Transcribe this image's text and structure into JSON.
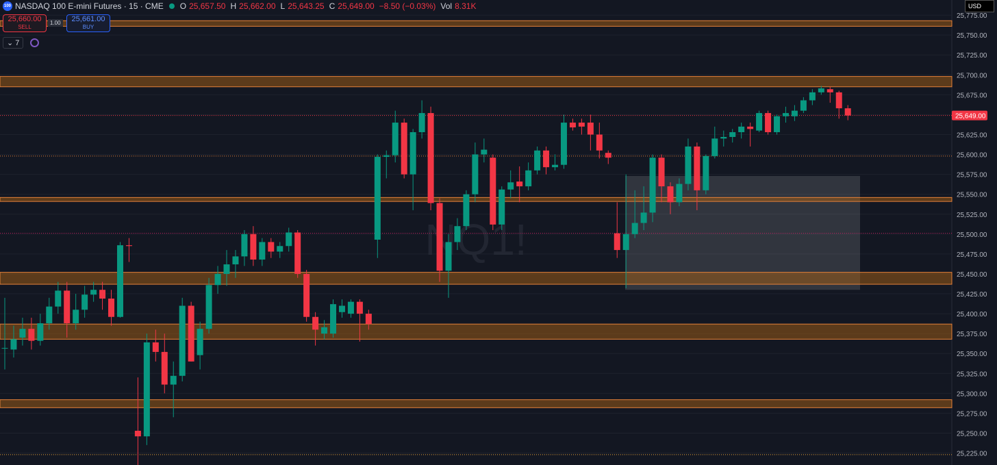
{
  "header": {
    "logo": "100",
    "symbol": "NASDAQ 100 E-mini Futures · 15 · CME",
    "ohlc": [
      {
        "key": "O",
        "value": "25,657.50"
      },
      {
        "key": "H",
        "value": "25,662.00"
      },
      {
        "key": "L",
        "value": "25,643.25"
      },
      {
        "key": "C",
        "value": "25,649.00"
      }
    ],
    "change": "−8.50 (−0.03%)",
    "vol_label": "Vol",
    "vol": "8.31K",
    "currency": "USD"
  },
  "trade": {
    "sell_price": "25,660.00",
    "sell": "SELL",
    "qty": "1.00",
    "buy_price": "25,661.00",
    "buy": "BUY",
    "indicators": "7"
  },
  "chart_data": {
    "type": "candlestick",
    "watermark": "NQ1!",
    "up_color": "#089981",
    "down_color": "#f23645",
    "ylim": [
      25210,
      25794
    ],
    "yticks": [
      {
        "value": 25225,
        "label": "25,225.00"
      },
      {
        "value": 25250,
        "label": "25,250.00"
      },
      {
        "value": 25275,
        "label": "25,275.00"
      },
      {
        "value": 25300,
        "label": "25,300.00"
      },
      {
        "value": 25325,
        "label": "25,325.00"
      },
      {
        "value": 25350,
        "label": "25,350.00"
      },
      {
        "value": 25375,
        "label": "25,375.00"
      },
      {
        "value": 25400,
        "label": "25,400.00"
      },
      {
        "value": 25425,
        "label": "25,425.00"
      },
      {
        "value": 25450,
        "label": "25,450.00"
      },
      {
        "value": 25475,
        "label": "25,475.00"
      },
      {
        "value": 25500,
        "label": "25,500.00"
      },
      {
        "value": 25525,
        "label": "25,525.00"
      },
      {
        "value": 25550,
        "label": "25,550.00"
      },
      {
        "value": 25575,
        "label": "25,575.00"
      },
      {
        "value": 25600,
        "label": "25,600.00"
      },
      {
        "value": 25625,
        "label": "25,625.00"
      },
      {
        "value": 25650,
        "label": "25,650.00"
      },
      {
        "value": 25675,
        "label": "25,675.00"
      },
      {
        "value": 25700,
        "label": "25,700.00"
      },
      {
        "value": 25725,
        "label": "25,725.00"
      },
      {
        "value": 25750,
        "label": "25,750.00"
      },
      {
        "value": 25775,
        "label": "25,775.00"
      }
    ],
    "grid": true,
    "last_price": {
      "value": 25649,
      "label": "25,649.00"
    },
    "zones": [
      [
        25761,
        25768
      ],
      [
        25685,
        25698
      ],
      [
        25541,
        25546
      ],
      [
        25437,
        25452
      ],
      [
        25368,
        25387
      ],
      [
        25282,
        25292
      ]
    ],
    "levels": [
      {
        "value": 25649,
        "color": "#f23645"
      },
      {
        "value": 25598,
        "color": "#e5813a"
      },
      {
        "value": 25501,
        "color": "#c2185b"
      },
      {
        "value": 25223,
        "color": "#e5a13a"
      }
    ],
    "highlight": [
      25430,
      25573
    ],
    "open": [
      25357,
      25355,
      25370,
      25381,
      25366,
      25388,
      25409,
      25429,
      25388,
      25405,
      25424,
      25430,
      25419,
      25396,
      25486,
      25253,
      25246,
      25364,
      25352,
      25311,
      25322,
      25410,
      25348,
      25381,
      25436,
      25450,
      25462,
      25472,
      25500,
      25468,
      25490,
      25478,
      25485,
      25502,
      25450,
      25396,
      25375,
      25375,
      25402,
      25400,
      25415,
      25400,
      25493,
      25597,
      25599,
      25640,
      25575,
      25628,
      25652,
      25539,
      25454,
      25490,
      25510,
      25550,
      25600,
      25596,
      25512,
      25556,
      25566,
      25560,
      25580,
      25605,
      25584,
      25587,
      25640,
      25640,
      25640,
      25625,
      25602,
      25501,
      25480,
      25500,
      25514,
      25527,
      25596,
      25560,
      25540,
      25563,
      25610,
      25555,
      25598,
      25620,
      25622,
      25628,
      25635,
      25630,
      25652,
      25628,
      25648,
      25648,
      25655,
      25668,
      25678,
      25682,
      25678,
      25658
    ],
    "high": [
      25420,
      25385,
      25395,
      25395,
      25400,
      25420,
      25440,
      25440,
      25425,
      25435,
      25440,
      25440,
      25430,
      25490,
      25495,
      25320,
      25375,
      25380,
      25375,
      25340,
      25420,
      25415,
      25390,
      25445,
      25460,
      25480,
      25480,
      25505,
      25510,
      25495,
      25495,
      25490,
      25508,
      25505,
      25455,
      25402,
      25392,
      25418,
      25418,
      25418,
      25418,
      25405,
      25600,
      25605,
      25655,
      25645,
      25632,
      25668,
      25660,
      25545,
      25500,
      25520,
      25555,
      25615,
      25620,
      25600,
      25560,
      25580,
      25585,
      25590,
      25610,
      25610,
      25600,
      25650,
      25645,
      25645,
      25650,
      25640,
      25605,
      25540,
      25575,
      25555,
      25560,
      25600,
      25600,
      25565,
      25570,
      25620,
      25615,
      25600,
      25635,
      25630,
      25632,
      25640,
      25640,
      25655,
      25655,
      25650,
      25660,
      25662,
      25672,
      25682,
      25686,
      25685,
      25680,
      25662
    ],
    "low": [
      25330,
      25345,
      25360,
      25355,
      25360,
      25380,
      25400,
      25370,
      25380,
      25395,
      25415,
      25405,
      25385,
      25395,
      25465,
      25210,
      25235,
      25340,
      25300,
      25270,
      25315,
      25340,
      25330,
      25375,
      25425,
      25435,
      25445,
      25460,
      25460,
      25460,
      25470,
      25470,
      25478,
      25445,
      25390,
      25360,
      25368,
      25370,
      25395,
      25395,
      25365,
      25380,
      25470,
      25570,
      25590,
      25570,
      25530,
      25620,
      25530,
      25440,
      25420,
      25480,
      25505,
      25540,
      25590,
      25505,
      25505,
      25545,
      25540,
      25555,
      25575,
      25575,
      25580,
      25582,
      25630,
      25625,
      25605,
      25595,
      25588,
      25470,
      25432,
      25495,
      25505,
      25515,
      25540,
      25525,
      25535,
      25555,
      25530,
      25550,
      25595,
      25610,
      25615,
      25620,
      25610,
      25628,
      25625,
      25625,
      25640,
      25642,
      25652,
      25662,
      25675,
      25665,
      25645,
      25643
    ],
    "close": [
      25357,
      25368,
      25381,
      25366,
      25388,
      25409,
      25429,
      25388,
      25405,
      25424,
      25430,
      25419,
      25396,
      25486,
      25485,
      25246,
      25364,
      25352,
      25311,
      25322,
      25410,
      25340,
      25381,
      25436,
      25450,
      25462,
      25472,
      25500,
      25468,
      25490,
      25478,
      25485,
      25502,
      25450,
      25396,
      25380,
      25383,
      25412,
      25410,
      25415,
      25400,
      25387,
      25597,
      25599,
      25640,
      25575,
      25628,
      25652,
      25539,
      25454,
      25490,
      25510,
      25550,
      25600,
      25606,
      25512,
      25556,
      25565,
      25560,
      25580,
      25605,
      25584,
      25587,
      25640,
      25634,
      25635,
      25625,
      25605,
      25596,
      25480,
      25500,
      25514,
      25527,
      25596,
      25560,
      25540,
      25563,
      25610,
      25555,
      25598,
      25620,
      25622,
      25628,
      25635,
      25632,
      25652,
      25628,
      25648,
      25652,
      25655,
      25668,
      25678,
      25683,
      25678,
      25658,
      25649
    ]
  }
}
